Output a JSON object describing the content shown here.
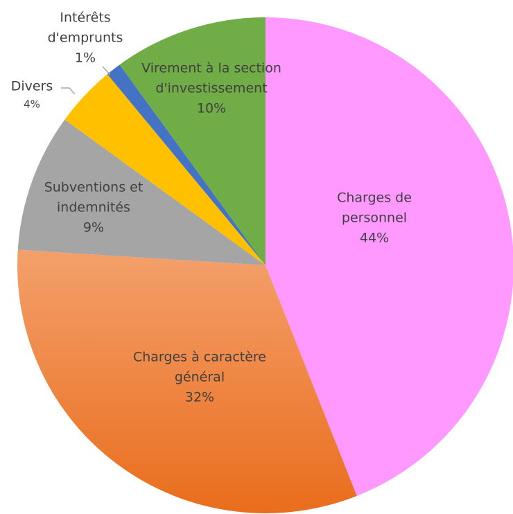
{
  "chart_data": {
    "type": "pie",
    "categories": [
      "Charges de personnel",
      "Charges à caractère général",
      "Subventions et indemnités",
      "Divers",
      "Intérêts d'emprunts",
      "Virement à la section d'investissement"
    ],
    "values": [
      44,
      32,
      9,
      4,
      1,
      10
    ],
    "value_labels": [
      "44%",
      "32%",
      "9%",
      "4%",
      "1%",
      "10%"
    ],
    "colors": [
      "#ff99ff",
      "#ed7d31",
      "#a5a5a5",
      "#ffc000",
      "#4472c4",
      "#70ad47"
    ]
  }
}
